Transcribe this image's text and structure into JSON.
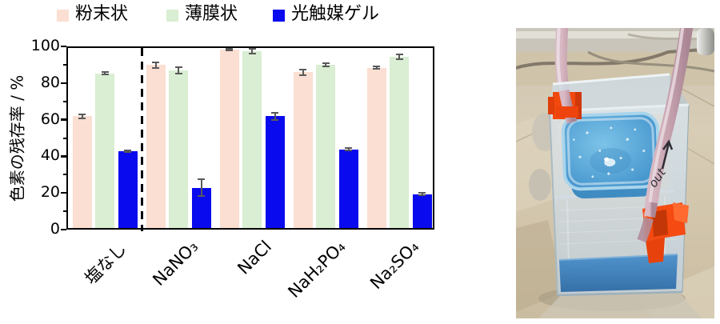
{
  "chart_data": {
    "type": "bar",
    "title": "",
    "ylabel": "色素の残存率 / %",
    "xlabel": "",
    "ylim": [
      0,
      100
    ],
    "yticks": [
      0,
      20,
      40,
      60,
      80,
      100
    ],
    "minor_tick_step": 10,
    "grid": false,
    "legend_position": "top",
    "categories": [
      "塩なし",
      "NaNO₃",
      "NaCl",
      "NaH₂PO₄",
      "Na₂SO₄"
    ],
    "separator_after_index": 0,
    "series": [
      {
        "name": "粉末状",
        "color": "#fbdfd2",
        "values": [
          61,
          89,
          97.5,
          85,
          87.5
        ],
        "errors": [
          1.0,
          1.5,
          0.5,
          1.5,
          0.5
        ]
      },
      {
        "name": "薄膜状",
        "color": "#d9eed2",
        "values": [
          84.5,
          86,
          96.5,
          89,
          93.5
        ],
        "errors": [
          0.8,
          1.8,
          1.5,
          0.8,
          1.3
        ]
      },
      {
        "name": "光触媒ゲル",
        "color": "#0a0aee",
        "values": [
          42,
          22,
          61,
          43,
          18.5
        ],
        "errors": [
          0.5,
          4.5,
          2.0,
          0.5,
          0.8
        ]
      }
    ],
    "error_bar_color": "#595959",
    "axis_color": "#000000"
  },
  "photo": {
    "tube_label": "out",
    "colors": {
      "gel": "#4fa6d9",
      "liquid": "#3a7fbe",
      "clips": "#f5490f",
      "tubes": "#c7a2af",
      "bench": "#d5c9b1"
    }
  }
}
